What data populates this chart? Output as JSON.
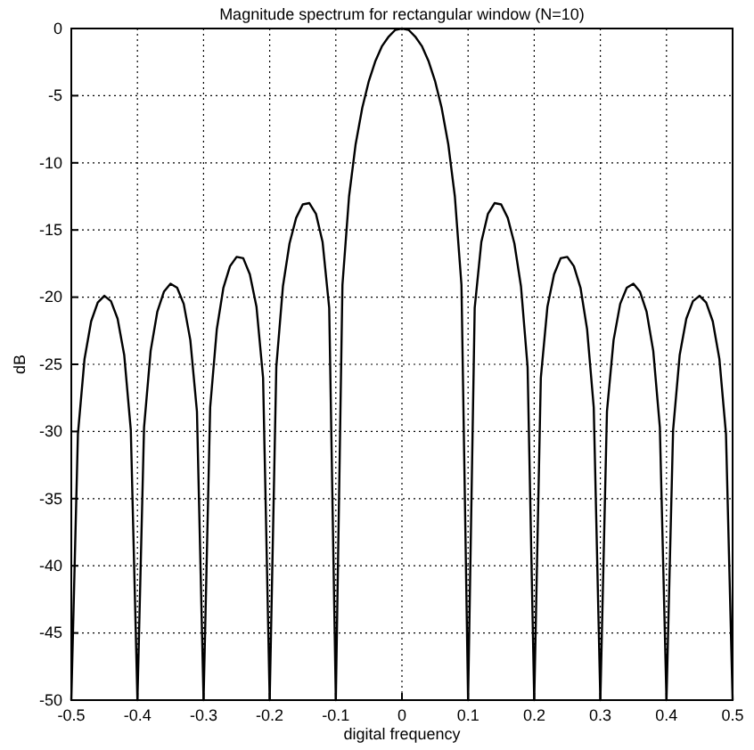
{
  "chart_data": {
    "type": "line",
    "title": "Magnitude spectrum for rectangular window (N=10)",
    "xlabel": "digital frequency",
    "ylabel": "dB",
    "x": [
      -0.5,
      -0.49,
      -0.48,
      -0.47,
      -0.46,
      -0.45,
      -0.44,
      -0.43,
      -0.42,
      -0.41,
      -0.4,
      -0.39,
      -0.38,
      -0.37,
      -0.36,
      -0.35,
      -0.34,
      -0.33,
      -0.32,
      -0.31,
      -0.3,
      -0.29,
      -0.28,
      -0.27,
      -0.26,
      -0.25,
      -0.24,
      -0.23,
      -0.22,
      -0.21,
      -0.2,
      -0.19,
      -0.18,
      -0.17,
      -0.16,
      -0.15,
      -0.14,
      -0.13,
      -0.12,
      -0.11,
      -0.1,
      -0.09,
      -0.08,
      -0.07,
      -0.06,
      -0.05,
      -0.04,
      -0.03,
      -0.02,
      -0.01,
      0,
      0.01,
      0.02,
      0.03,
      0.04,
      0.05,
      0.06,
      0.07,
      0.08,
      0.09,
      0.1,
      0.11,
      0.12,
      0.13,
      0.14,
      0.15,
      0.16,
      0.17,
      0.18,
      0.19,
      0.2,
      0.21,
      0.22,
      0.23,
      0.24,
      0.25,
      0.26,
      0.27,
      0.28,
      0.29,
      0.3,
      0.31,
      0.32,
      0.33,
      0.34,
      0.35,
      0.36,
      0.37,
      0.38,
      0.39,
      0.4,
      0.41,
      0.42,
      0.43,
      0.44,
      0.45,
      0.46,
      0.47,
      0.48,
      0.49,
      0.5
    ],
    "series": [
      {
        "color": "#000000",
        "values": [
          -50,
          -30.2,
          -24.6,
          -21.8,
          -20.4,
          -19.9,
          -20.3,
          -21.6,
          -24.3,
          -29.9,
          -50,
          -29.7,
          -24,
          -21.1,
          -19.6,
          -19,
          -19.3,
          -20.5,
          -23.2,
          -28.5,
          -50,
          -28.2,
          -22.4,
          -19.3,
          -17.7,
          -17,
          -17.1,
          -18.3,
          -20.7,
          -26,
          -50,
          -25.2,
          -19.2,
          -16,
          -14.1,
          -13.1,
          -13,
          -13.8,
          -15.9,
          -20.8,
          -50,
          -19.1,
          -12.5,
          -8.6,
          -5.9,
          -3.9,
          -2.4,
          -1.3,
          -0.6,
          -0.1,
          0,
          -0.1,
          -0.6,
          -1.3,
          -2.4,
          -3.9,
          -5.9,
          -8.6,
          -12.5,
          -19.1,
          -50,
          -20.8,
          -15.9,
          -13.8,
          -13,
          -13.1,
          -14.1,
          -16,
          -19.2,
          -25.2,
          -50,
          -26,
          -20.7,
          -18.3,
          -17.1,
          -17,
          -17.7,
          -19.3,
          -22.4,
          -28.2,
          -50,
          -28.5,
          -23.2,
          -20.5,
          -19.3,
          -19,
          -19.6,
          -21.1,
          -24,
          -29.7,
          -50,
          -29.9,
          -24.3,
          -21.6,
          -20.3,
          -19.9,
          -20.4,
          -21.8,
          -24.6,
          -30.2,
          -50
        ]
      }
    ],
    "xlim": [
      -0.5,
      0.5
    ],
    "xticks": [
      -0.5,
      -0.4,
      -0.3,
      -0.2,
      -0.1,
      0,
      0.1,
      0.2,
      0.3,
      0.4,
      0.5
    ],
    "ylim": [
      -50,
      0
    ],
    "yticks": [
      0,
      -5,
      -10,
      -15,
      -20,
      -25,
      -30,
      -35,
      -40,
      -45,
      -50
    ],
    "grid": true,
    "line_style": "solid",
    "marker": "none"
  }
}
